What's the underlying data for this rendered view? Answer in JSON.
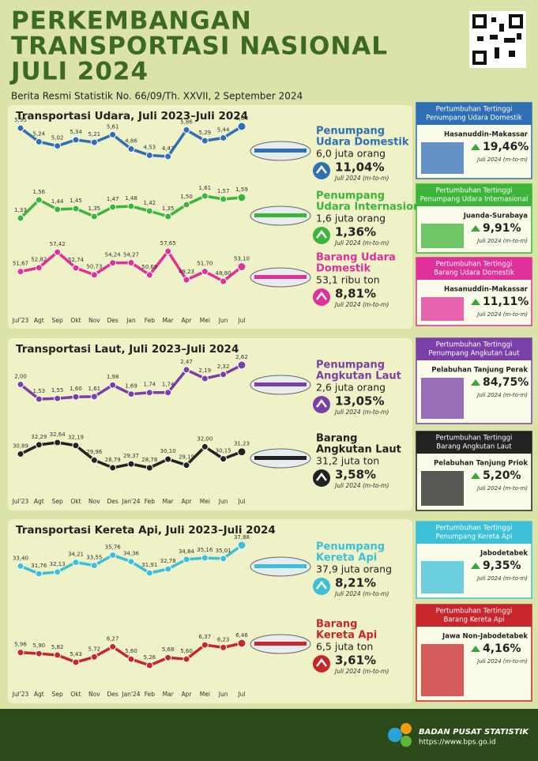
{
  "header": {
    "title": [
      "PERKEMBANGAN",
      "TRANSPORTASI NASIONAL",
      "JULI 2024"
    ],
    "subtitle": "Berita Resmi Statistik No. 66/09/Th. XXVII, 2 September 2024"
  },
  "sections": [
    {
      "title": "Transportasi Udara, Juli 2023–Juli 2024",
      "months": [
        "Jul'23",
        "Agt",
        "Sep",
        "Okt",
        "Nov",
        "Des",
        "Jan",
        "Feb",
        "Mar",
        "Apr",
        "Mei",
        "Jun",
        "Jul"
      ],
      "charts": [
        {
          "type": "line",
          "color": "#2f6fb5",
          "name": [
            "Penumpang",
            "Udara Domestik"
          ],
          "amount": "6,0 juta orang",
          "growth": "11,04%",
          "note": "Juli 2024 (m-to-m)",
          "values": [
            5.95,
            5.24,
            5.02,
            5.34,
            5.21,
            5.61,
            4.86,
            4.53,
            4.47,
            5.86,
            5.29,
            5.44,
            6.04
          ],
          "value_labels": [
            "5,95",
            "5,24",
            "5,02",
            "5,34",
            "5,21",
            "5,61",
            "4,86",
            "4,53",
            "4,47",
            "5,86",
            "5,29",
            "5,44",
            "6,04"
          ]
        },
        {
          "type": "line",
          "color": "#3db53a",
          "name": [
            "Penumpang",
            "Udara Internasional"
          ],
          "amount": "1,6 juta orang",
          "growth": "1,36%",
          "note": "Juli 2024 (m-to-m)",
          "values": [
            1.33,
            1.56,
            1.44,
            1.45,
            1.35,
            1.47,
            1.48,
            1.42,
            1.35,
            1.5,
            1.61,
            1.57,
            1.59
          ],
          "value_labels": [
            "1,33",
            "1,56",
            "1,44",
            "1,45",
            "1,35",
            "1,47",
            "1,48",
            "1,42",
            "1,35",
            "1,50",
            "1,61",
            "1,57",
            "1,59"
          ]
        },
        {
          "type": "line",
          "color": "#e0309a",
          "name": [
            "Barang Udara",
            "Domestik"
          ],
          "amount": "53,1 ribu ton",
          "growth": "8,81%",
          "note": "Juli 2024 (m-to-m)",
          "values": [
            51.67,
            52.82,
            57.42,
            52.74,
            50.73,
            54.24,
            54.27,
            50.69,
            57.65,
            49.23,
            51.7,
            48.8,
            53.1
          ],
          "value_labels": [
            "51,67",
            "52,82",
            "57,42",
            "52,74",
            "50,73",
            "54,24",
            "54,27",
            "50,69",
            "57,65",
            "49,23",
            "51,70",
            "48,80",
            "53,10"
          ]
        }
      ],
      "highlights": [
        {
          "color": "#2f6fb5",
          "title": [
            "Pertumbuhan Tertinggi",
            "Penumpang Udara Domestik"
          ],
          "place": "Hasanuddin-Makassar",
          "growth": "19,46%",
          "note": "Juli 2024 (m-to-m)"
        },
        {
          "color": "#3db53a",
          "title": [
            "Pertumbuhan Tertinggi",
            "Penumpang Udara Internasional"
          ],
          "place": "Juanda-Surabaya",
          "growth": "9,91%",
          "note": "Juli 2024 (m-to-m)"
        },
        {
          "color": "#e0309a",
          "title": [
            "Pertumbuhan Tertinggi",
            "Barang Udara Domestik"
          ],
          "place": "Hasanuddin-Makassar",
          "growth": "11,11%",
          "note": "Juli 2024 (m-to-m)"
        }
      ]
    },
    {
      "title": "Transportasi Laut, Juli 2023–Juli 2024",
      "months": [
        "Jul'23",
        "Agt",
        "Sep",
        "Okt",
        "Nov",
        "Des",
        "Jan'24",
        "Feb",
        "Mar",
        "Apr",
        "Mei",
        "Jun",
        "Jul"
      ],
      "charts": [
        {
          "type": "line",
          "color": "#7b3fa8",
          "name": [
            "Penumpang",
            "Angkutan Laut"
          ],
          "amount": "2,6 juta orang",
          "growth": "13,05%",
          "note": "Juli 2024 (m-to-m)",
          "values": [
            2.0,
            1.53,
            1.55,
            1.6,
            1.61,
            1.98,
            1.69,
            1.74,
            1.74,
            2.47,
            2.19,
            2.32,
            2.62
          ],
          "value_labels": [
            "2,00",
            "1,53",
            "1,55",
            "1,60",
            "1,61",
            "1,98",
            "1,69",
            "1,74",
            "1,74",
            "2,47",
            "2,19",
            "2,32",
            "2,62"
          ]
        },
        {
          "type": "line",
          "color": "#222222",
          "name": [
            "Barang",
            "Angkutan Laut"
          ],
          "amount": "31,2 juta ton",
          "growth": "3,58%",
          "note": "Juli 2024 (m-to-m)",
          "values": [
            30.89,
            32.29,
            32.64,
            32.19,
            29.96,
            28.79,
            29.37,
            28.78,
            30.1,
            29.19,
            32.0,
            30.15,
            31.23
          ],
          "value_labels": [
            "30,89",
            "32,29",
            "32,64",
            "32,19",
            "29,96",
            "28,79",
            "29,37",
            "28,78",
            "30,10",
            "29,19",
            "32,00",
            "30,15",
            "31,23"
          ]
        }
      ],
      "highlights": [
        {
          "color": "#7b3fa8",
          "title": [
            "Pertumbuhan Tertinggi",
            "Penumpang Angkutan Laut"
          ],
          "place": "Pelabuhan Tanjung Perak",
          "growth": "84,75%",
          "note": "Juli 2024 (m-to-m)"
        },
        {
          "color": "#222222",
          "title": [
            "Pertumbuhan Tertinggi",
            "Barang Angkutan Laut"
          ],
          "place": "Pelabuhan Tanjung Priok",
          "growth": "5,20%",
          "note": "Juli 2024 (m-to-m)"
        }
      ]
    },
    {
      "title": "Transportasi Kereta Api, Juli 2023–Juli 2024",
      "months": [
        "Jul'23",
        "Agt",
        "Sep",
        "Okt",
        "Nov",
        "Des",
        "Jan'24",
        "Feb",
        "Mar",
        "Apr",
        "Mei",
        "Jun",
        "Jul"
      ],
      "charts": [
        {
          "type": "line",
          "color": "#3cc0d8",
          "name": [
            "Penumpang",
            "Kereta Api"
          ],
          "amount": "37,9 juta orang",
          "growth": "8,21%",
          "note": "Juli 2024 (m-to-m)",
          "values": [
            33.4,
            31.76,
            32.13,
            34.21,
            33.55,
            35.76,
            34.36,
            31.91,
            32.78,
            34.84,
            35.16,
            35.01,
            37.88
          ],
          "value_labels": [
            "33,40",
            "31,76",
            "32,13",
            "34,21",
            "33,55",
            "35,76",
            "34,36",
            "31,91",
            "32,78",
            "34,84",
            "35,16",
            "35,01",
            "37,88"
          ]
        },
        {
          "type": "line",
          "color": "#c8262b",
          "name": [
            "Barang",
            "Kereta Api"
          ],
          "amount": "6,5 juta ton",
          "growth": "3,61%",
          "note": "Juli 2024 (m-to-m)",
          "values": [
            5.96,
            5.9,
            5.82,
            5.43,
            5.72,
            6.27,
            5.6,
            5.26,
            5.68,
            5.6,
            6.37,
            6.23,
            6.46
          ],
          "value_labels": [
            "5,96",
            "5,90",
            "5,82",
            "5,43",
            "5,72",
            "6,27",
            "5,60",
            "5,26",
            "5,68",
            "5,60",
            "6,37",
            "6,23",
            "6,46"
          ]
        }
      ],
      "highlights": [
        {
          "color": "#3cc0d8",
          "title": [
            "Pertumbuhan Tertinggi",
            "Penumpang Kereta Api"
          ],
          "place": "Jabodetabek",
          "growth": "9,35%",
          "note": "Juli 2024 (m-to-m)"
        },
        {
          "color": "#c8262b",
          "title": [
            "Pertumbuhan Tertinggi",
            "Barang Kereta Api"
          ],
          "place": "Jawa Non-Jabodetabek",
          "growth": "4,16%",
          "note": "Juli 2024 (m-to-m)"
        }
      ]
    }
  ],
  "footer": {
    "org": "BADAN PUSAT STATISTIK",
    "url": "https://www.bps.go.id"
  }
}
